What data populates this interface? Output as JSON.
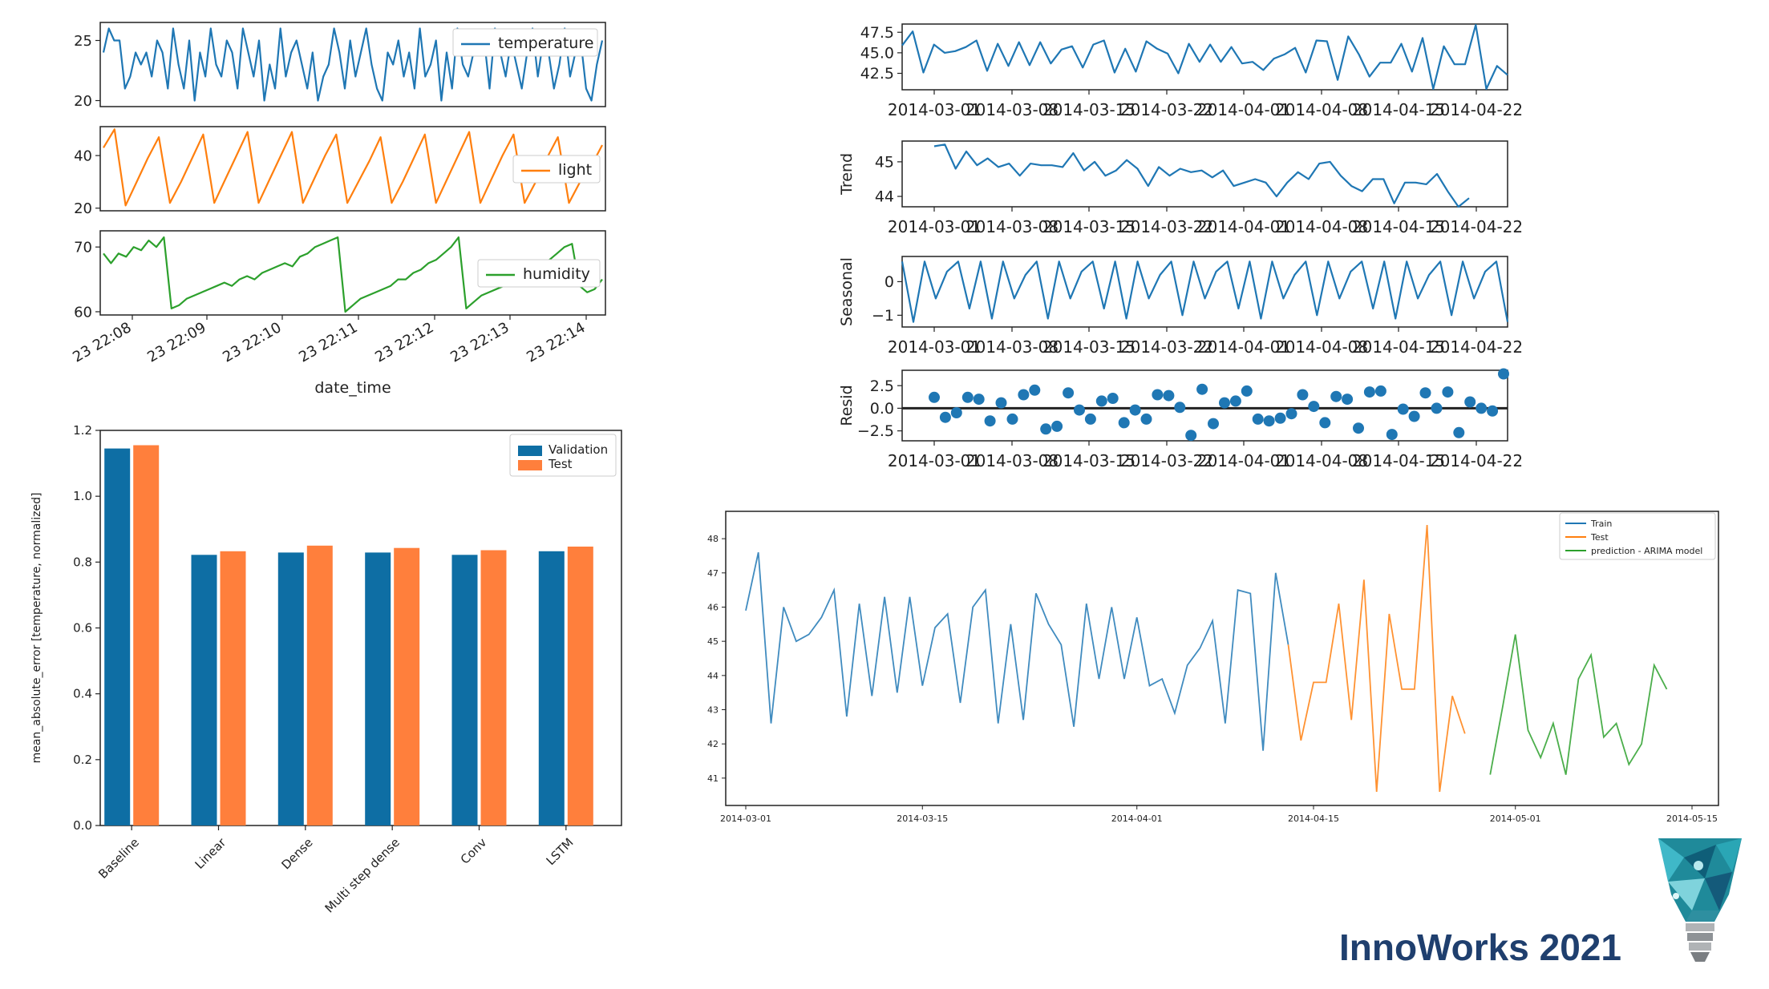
{
  "brand": {
    "label": "InnoWorks 2021",
    "color": "#1f3f6e"
  },
  "colors": {
    "blue": "#1f77b4",
    "orange": "#ff7f0e",
    "green": "#2ca02c",
    "val": "#0e6ea4",
    "test": "#ff7f3c"
  },
  "charts": {
    "sensors": {
      "type": "line",
      "xlabel": "date_time",
      "xticks": [
        "23 22:08",
        "23 22:09",
        "23 22:10",
        "23 22:11",
        "23 22:12",
        "23 22:13",
        "23 22:14"
      ],
      "temperature": {
        "name": "temperature",
        "yticks": [
          "25",
          "20"
        ],
        "ylim": [
          19.5,
          26.5
        ],
        "values": [
          24,
          26,
          25,
          25,
          21,
          22,
          24,
          23,
          24,
          22,
          25,
          24,
          21,
          26,
          23,
          21,
          25,
          20,
          24,
          22,
          26,
          23,
          22,
          25,
          24,
          21,
          26,
          24,
          22,
          25,
          20,
          23,
          21,
          26,
          22,
          24,
          25,
          23,
          21,
          24,
          20,
          22,
          23,
          26,
          24,
          21,
          25,
          22,
          24,
          26,
          23,
          21,
          20,
          24,
          23,
          25,
          22,
          24,
          21,
          26,
          22,
          23,
          25,
          20,
          24,
          21,
          26,
          23,
          22,
          24,
          25,
          25,
          21,
          26,
          24,
          22,
          25,
          23,
          21,
          24,
          26,
          22,
          25,
          24,
          21,
          23,
          26,
          22,
          24,
          25,
          21,
          20,
          23,
          25
        ]
      },
      "light": {
        "name": "light",
        "yticks": [
          "40",
          "20"
        ],
        "ylim": [
          19,
          51
        ],
        "values": [
          43,
          50,
          21,
          30,
          39,
          47,
          22,
          30,
          39,
          48,
          22,
          31,
          40,
          49,
          22,
          31,
          40,
          49,
          22,
          31,
          40,
          48,
          22,
          30,
          38,
          47,
          22,
          30,
          39,
          48,
          22,
          31,
          40,
          49,
          22,
          31,
          40,
          48,
          22,
          30,
          39,
          47,
          22,
          30,
          36,
          44
        ]
      },
      "humidity": {
        "name": "humidity",
        "yticks": [
          "70",
          "60"
        ],
        "ylim": [
          59.5,
          72.5
        ],
        "values": [
          69,
          67.5,
          69,
          68.5,
          70,
          69.5,
          71,
          70,
          71.5,
          60.5,
          61,
          62,
          62.5,
          63,
          63.5,
          64,
          64.5,
          64,
          65,
          65.5,
          65,
          66,
          66.5,
          67,
          67.5,
          67,
          68.5,
          69,
          70,
          70.5,
          71,
          71.5,
          60,
          61,
          62,
          62.5,
          63,
          63.5,
          64,
          65,
          65,
          66,
          66.5,
          67.5,
          68,
          69,
          70,
          71.5,
          60.5,
          61.5,
          62.5,
          63,
          63.5,
          64,
          64.5,
          65,
          66,
          66.5,
          67,
          68,
          69,
          70,
          70.5,
          64,
          63,
          63.5,
          65
        ]
      }
    },
    "decomposition": {
      "type": "line",
      "xticks": [
        "2014-03-01",
        "2014-03-08",
        "2014-03-15",
        "2014-03-22",
        "2014-04-01",
        "2014-04-08",
        "2014-04-15",
        "2014-04-22"
      ],
      "observed": {
        "ylabel": "",
        "yticks": [
          "47.5",
          "45.0",
          "42.5"
        ],
        "ylim": [
          40.5,
          48.5
        ],
        "values": [
          45.9,
          47.6,
          42.6,
          46.0,
          45.0,
          45.2,
          45.7,
          46.5,
          42.8,
          46.1,
          43.4,
          46.3,
          43.5,
          46.3,
          43.7,
          45.4,
          45.8,
          43.2,
          46.0,
          46.5,
          42.6,
          45.5,
          42.7,
          46.4,
          45.5,
          44.9,
          42.5,
          46.1,
          43.9,
          46.0,
          43.9,
          45.7,
          43.7,
          43.9,
          42.9,
          44.3,
          44.8,
          45.6,
          42.6,
          46.5,
          46.4,
          41.7,
          47.0,
          44.8,
          42.1,
          43.8,
          43.8,
          46.1,
          42.7,
          46.8,
          40.6,
          45.8,
          43.6,
          43.6,
          48.4,
          40.6,
          43.4,
          42.3
        ]
      },
      "trend": {
        "ylabel": "Trend",
        "yticks": [
          "45",
          "44"
        ],
        "ylim": [
          43.7,
          45.6
        ],
        "values": [
          45.45,
          45.5,
          44.8,
          45.3,
          44.9,
          45.1,
          44.85,
          44.95,
          44.6,
          44.95,
          44.9,
          44.9,
          44.85,
          45.25,
          44.75,
          45.0,
          44.6,
          44.75,
          45.05,
          44.8,
          44.3,
          44.85,
          44.6,
          44.8,
          44.7,
          44.75,
          44.55,
          44.75,
          44.3,
          44.4,
          44.5,
          44.4,
          44.0,
          44.4,
          44.7,
          44.5,
          44.95,
          45.0,
          44.6,
          44.3,
          44.15,
          44.5,
          44.5,
          43.8,
          44.4,
          44.4,
          44.35,
          44.65,
          44.15,
          43.7,
          43.95
        ]
      },
      "seasonal": {
        "ylabel": "Seasonal",
        "yticks": [
          "0",
          "−1"
        ],
        "ylim": [
          -1.35,
          0.75
        ],
        "values": [
          0.6,
          -1.2,
          0.6,
          -0.5,
          0.3,
          0.6,
          -0.8,
          0.6,
          -1.1,
          0.6,
          -0.5,
          0.2,
          0.6,
          -1.1,
          0.6,
          -0.5,
          0.3,
          0.6,
          -0.8,
          0.6,
          -1.1,
          0.6,
          -0.5,
          0.2,
          0.6,
          -1.0,
          0.6,
          -0.5,
          0.3,
          0.6,
          -0.8,
          0.6,
          -1.1,
          0.6,
          -0.5,
          0.2,
          0.6,
          -1.0,
          0.6,
          -0.5,
          0.3,
          0.6,
          -0.8,
          0.6,
          -1.1,
          0.6,
          -0.5,
          0.2,
          0.6,
          -1.0,
          0.6,
          -0.5,
          0.3,
          0.6,
          -1.2
        ]
      },
      "resid": {
        "ylabel": "Resid",
        "yticks": [
          "2.5",
          "0.0",
          "−2.5"
        ],
        "ylim": [
          -3.6,
          4.2
        ],
        "values": [
          1.2,
          -1.0,
          -0.5,
          1.2,
          1.0,
          -1.4,
          0.6,
          -1.2,
          1.5,
          2.0,
          -2.3,
          -2.0,
          1.7,
          -0.2,
          -1.2,
          0.8,
          1.1,
          -1.6,
          -0.2,
          -1.2,
          1.5,
          1.4,
          0.1,
          -3.0,
          2.1,
          -1.7,
          0.6,
          0.8,
          1.9,
          -1.2,
          -1.4,
          -1.1,
          -0.6,
          1.5,
          0.2,
          -1.6,
          1.3,
          1.0,
          -2.2,
          1.8,
          1.9,
          -2.9,
          -0.1,
          -0.9,
          1.7,
          0.0,
          1.8,
          -2.7,
          0.7,
          0.0,
          -0.3,
          3.8
        ]
      }
    },
    "mae": {
      "type": "bar",
      "ylabel": "mean_absolute_error [temperature, normalized]",
      "ylim": [
        0,
        1.2
      ],
      "yticks": [
        "0.0",
        "0.2",
        "0.4",
        "0.6",
        "0.8",
        "1.0",
        "1.2"
      ],
      "categories": [
        "Baseline",
        "Linear",
        "Dense",
        "Multi step dense",
        "Conv",
        "LSTM"
      ],
      "series": [
        {
          "name": "Validation",
          "values": [
            1.145,
            0.822,
            0.829,
            0.829,
            0.822,
            0.833
          ]
        },
        {
          "name": "Test",
          "values": [
            1.155,
            0.833,
            0.85,
            0.843,
            0.836,
            0.847
          ]
        }
      ]
    },
    "arima": {
      "type": "line",
      "xticks": [
        "2014-03-01",
        "2014-03-15",
        "2014-04-01",
        "2014-04-15",
        "2014-05-01",
        "2014-05-15"
      ],
      "yticks": [
        "41",
        "42",
        "43",
        "44",
        "45",
        "46",
        "47",
        "48"
      ],
      "ylim": [
        40.2,
        48.8
      ],
      "series": [
        {
          "name": "Train",
          "start_day": 0,
          "values": [
            45.9,
            47.6,
            42.6,
            46.0,
            45.0,
            45.2,
            45.7,
            46.5,
            42.8,
            46.1,
            43.4,
            46.3,
            43.5,
            46.3,
            43.7,
            45.4,
            45.8,
            43.2,
            46.0,
            46.5,
            42.6,
            45.5,
            42.7,
            46.4,
            45.5,
            44.9,
            42.5,
            46.1,
            43.9,
            46.0,
            43.9,
            45.7,
            43.7,
            43.9,
            42.9,
            44.3,
            44.8,
            45.6,
            42.6,
            46.5,
            46.4,
            41.8,
            47.0,
            44.9
          ]
        },
        {
          "name": "Test",
          "start_day": 43,
          "values": [
            44.9,
            42.1,
            43.8,
            43.8,
            46.1,
            42.7,
            46.8,
            40.6,
            45.8,
            43.6,
            43.6,
            48.4,
            40.6,
            43.4,
            42.3
          ]
        },
        {
          "name": "prediction - ARIMA model",
          "start_day": 59,
          "values": [
            41.1,
            43.1,
            45.2,
            42.4,
            41.6,
            42.6,
            41.1,
            43.9,
            44.6,
            42.2,
            42.6,
            41.4,
            42.0,
            44.3,
            43.6
          ]
        }
      ]
    }
  }
}
